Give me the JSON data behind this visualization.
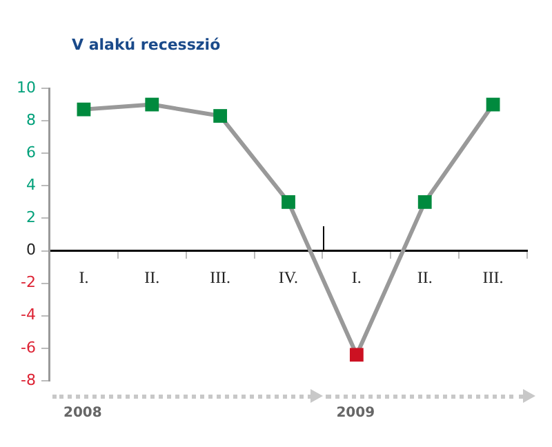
{
  "chart_data": {
    "type": "line",
    "title": "V alakú recesszió",
    "categories": [
      "I.",
      "II.",
      "III.",
      "IV.",
      "I.",
      "II.",
      "III."
    ],
    "series": [
      {
        "color": "#999999",
        "colors": [
          "#008a3e",
          "#008a3e",
          "#008a3e",
          "#008a3e",
          "#cc1122",
          "#008a3e",
          "#008a3e"
        ],
        "values": [
          8.7,
          9.0,
          8.3,
          3.0,
          -6.4,
          3.0,
          9.0
        ]
      }
    ],
    "ylim": [
      -8,
      10
    ],
    "yticks": [
      -8,
      -6,
      -4,
      -2,
      0,
      2,
      4,
      6,
      8,
      10
    ],
    "grid": false,
    "legend": false,
    "marker": "square",
    "line_style": "solid",
    "annotations": [
      "2008",
      "2009"
    ]
  }
}
